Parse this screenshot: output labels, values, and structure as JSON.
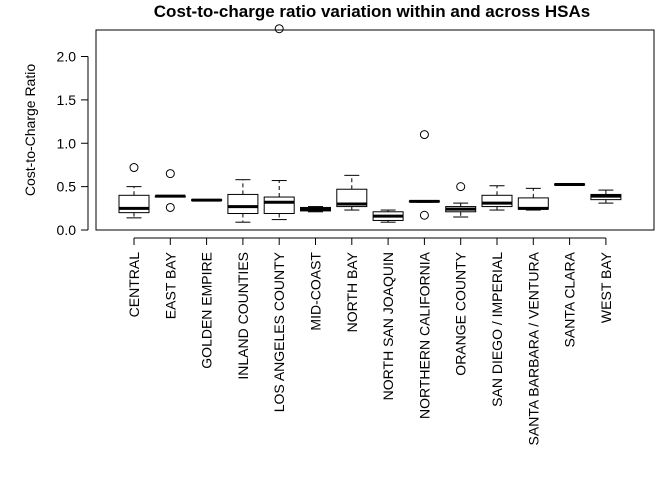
{
  "chart_data": {
    "type": "boxplot",
    "title": "Cost-to-charge ratio variation within and across HSAs",
    "xlabel": "",
    "ylabel": "Cost-to-Charge Ratio",
    "ylim": [
      0,
      2.35
    ],
    "yticks": [
      0.0,
      0.5,
      1.0,
      1.5,
      2.0
    ],
    "ytick_labels": [
      "0.0",
      "0.5",
      "1.0",
      "1.5",
      "2.0"
    ],
    "grid": false,
    "categories": [
      "CENTRAL",
      "EAST BAY",
      "GOLDEN EMPIRE",
      "INLAND COUNTIES",
      "LOS ANGELES COUNTY",
      "MID-COAST",
      "NORTH BAY",
      "NORTH SAN JOAQUIN",
      "NORTHERN CALIFORNIA",
      "ORANGE COUNTY",
      "SAN DIEGO / IMPERIAL",
      "SANTA BARBARA / VENTURA",
      "SANTA CLARA",
      "WEST BAY"
    ],
    "boxes": [
      {
        "whisker_low": 0.14,
        "q1": 0.2,
        "median": 0.25,
        "q3": 0.4,
        "whisker_high": 0.5,
        "outliers": [
          0.72
        ]
      },
      {
        "whisker_low": 0.38,
        "q1": 0.38,
        "median": 0.39,
        "q3": 0.39,
        "whisker_high": 0.39,
        "outliers": [
          0.65,
          0.26
        ]
      },
      {
        "whisker_low": 0.34,
        "q1": 0.34,
        "median": 0.345,
        "q3": 0.35,
        "whisker_high": 0.35,
        "outliers": []
      },
      {
        "whisker_low": 0.09,
        "q1": 0.19,
        "median": 0.27,
        "q3": 0.41,
        "whisker_high": 0.58,
        "outliers": []
      },
      {
        "whisker_low": 0.12,
        "q1": 0.19,
        "median": 0.32,
        "q3": 0.38,
        "whisker_high": 0.57,
        "outliers": [
          2.32
        ]
      },
      {
        "whisker_low": 0.21,
        "q1": 0.22,
        "median": 0.24,
        "q3": 0.26,
        "whisker_high": 0.27,
        "outliers": []
      },
      {
        "whisker_low": 0.23,
        "q1": 0.27,
        "median": 0.3,
        "q3": 0.47,
        "whisker_high": 0.63,
        "outliers": []
      },
      {
        "whisker_low": 0.09,
        "q1": 0.11,
        "median": 0.16,
        "q3": 0.21,
        "whisker_high": 0.23,
        "outliers": []
      },
      {
        "whisker_low": 0.32,
        "q1": 0.325,
        "median": 0.33,
        "q3": 0.335,
        "whisker_high": 0.34,
        "outliers": [
          1.1,
          0.17
        ]
      },
      {
        "whisker_low": 0.15,
        "q1": 0.21,
        "median": 0.24,
        "q3": 0.27,
        "whisker_high": 0.31,
        "outliers": [
          0.5
        ]
      },
      {
        "whisker_low": 0.23,
        "q1": 0.27,
        "median": 0.31,
        "q3": 0.4,
        "whisker_high": 0.51,
        "outliers": []
      },
      {
        "whisker_low": 0.23,
        "q1": 0.24,
        "median": 0.25,
        "q3": 0.37,
        "whisker_high": 0.48,
        "outliers": []
      },
      {
        "whisker_low": 0.52,
        "q1": 0.52,
        "median": 0.525,
        "q3": 0.53,
        "whisker_high": 0.53,
        "outliers": []
      },
      {
        "whisker_low": 0.31,
        "q1": 0.35,
        "median": 0.39,
        "q3": 0.41,
        "whisker_high": 0.46,
        "outliers": []
      }
    ]
  }
}
